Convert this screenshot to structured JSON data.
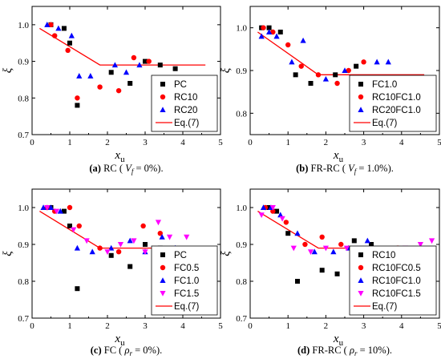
{
  "chart_data": [
    {
      "type": "scatter",
      "xlabel": "x",
      "xlabel_sub": "u",
      "ylabel": "ξ",
      "xlim": [
        0,
        5
      ],
      "ylim": [
        0.7,
        1.05
      ],
      "xticks": [
        "0",
        "1",
        "2",
        "3",
        "4",
        "5"
      ],
      "yticks": [
        "0.7",
        "0.8",
        "0.9",
        "1.0"
      ],
      "caption": {
        "tag": "(a)",
        "text": "RC (",
        "var": "V",
        "sub": "f",
        "tail": " = 0%)."
      },
      "legend_position": "bottom-right",
      "series": [
        {
          "name": "PC",
          "marker": "square",
          "color": "#000000",
          "points": [
            [
              0.5,
              1.0
            ],
            [
              0.85,
              0.99
            ],
            [
              1.0,
              0.95
            ],
            [
              1.2,
              0.78
            ],
            [
              2.1,
              0.87
            ],
            [
              2.6,
              0.84
            ],
            [
              3.0,
              0.9
            ],
            [
              3.4,
              0.89
            ],
            [
              3.8,
              0.88
            ]
          ]
        },
        {
          "name": "RC10",
          "marker": "circle",
          "color": "#ff0000",
          "points": [
            [
              0.5,
              1.0
            ],
            [
              0.6,
              0.97
            ],
            [
              0.95,
              0.93
            ],
            [
              1.2,
              0.8
            ],
            [
              1.8,
              0.83
            ],
            [
              2.3,
              0.82
            ],
            [
              2.7,
              0.91
            ],
            [
              3.1,
              0.9
            ],
            [
              3.55,
              0.83
            ],
            [
              3.95,
              0.8
            ]
          ]
        },
        {
          "name": "RC20",
          "marker": "triangle",
          "color": "#0000ff",
          "points": [
            [
              0.4,
              1.0
            ],
            [
              0.7,
              0.99
            ],
            [
              1.05,
              0.97
            ],
            [
              1.25,
              0.86
            ],
            [
              1.55,
              0.86
            ],
            [
              2.2,
              0.89
            ],
            [
              2.5,
              0.87
            ],
            [
              2.85,
              0.89
            ],
            [
              3.25,
              0.81
            ],
            [
              3.7,
              0.81
            ]
          ]
        }
      ],
      "line": {
        "name": "Eq.(7)",
        "color": "#ff0000",
        "points": [
          [
            0.2,
            0.99
          ],
          [
            1.8,
            0.89
          ],
          [
            4.6,
            0.89
          ]
        ]
      }
    },
    {
      "type": "scatter",
      "xlabel": "x",
      "xlabel_sub": "u",
      "ylabel": "ξ",
      "xlim": [
        0,
        5
      ],
      "ylim": [
        0.75,
        1.05
      ],
      "xticks": [
        "0",
        "1",
        "2",
        "3",
        "4",
        "5"
      ],
      "yticks": [
        "0.8",
        "0.9",
        "1.0"
      ],
      "caption": {
        "tag": "(b)",
        "text": "FR-RC (",
        "var": "V",
        "sub": "f",
        "tail": " = 1.0%)."
      },
      "legend_position": "bottom-right",
      "series": [
        {
          "name": "FC1.0",
          "marker": "square",
          "color": "#000000",
          "points": [
            [
              0.3,
              1.0
            ],
            [
              0.5,
              1.0
            ],
            [
              0.8,
              0.99
            ],
            [
              1.2,
              0.89
            ],
            [
              1.6,
              0.87
            ],
            [
              2.25,
              0.89
            ],
            [
              2.8,
              0.91
            ],
            [
              3.2,
              0.88
            ],
            [
              3.5,
              0.88
            ]
          ]
        },
        {
          "name": "RC10FC1.0",
          "marker": "circle",
          "color": "#ff0000",
          "points": [
            [
              0.35,
              1.0
            ],
            [
              0.6,
              0.99
            ],
            [
              1.0,
              0.96
            ],
            [
              1.35,
              0.91
            ],
            [
              1.8,
              0.89
            ],
            [
              2.3,
              0.87
            ],
            [
              2.6,
              0.9
            ],
            [
              3.0,
              0.92
            ],
            [
              3.4,
              0.88
            ],
            [
              3.8,
              0.87
            ]
          ]
        },
        {
          "name": "RC20FC1.0",
          "marker": "triangle",
          "color": "#0000ff",
          "points": [
            [
              0.3,
              0.98
            ],
            [
              0.5,
              0.99
            ],
            [
              0.7,
              0.98
            ],
            [
              1.1,
              0.92
            ],
            [
              1.4,
              0.97
            ],
            [
              2.0,
              0.88
            ],
            [
              2.5,
              0.9
            ],
            [
              3.0,
              0.81
            ],
            [
              3.35,
              0.92
            ],
            [
              3.65,
              0.92
            ]
          ]
        }
      ],
      "line": {
        "name": "Eq.(7)",
        "color": "#ff0000",
        "points": [
          [
            0.2,
            0.99
          ],
          [
            1.8,
            0.89
          ],
          [
            4.6,
            0.89
          ]
        ]
      }
    },
    {
      "type": "scatter",
      "xlabel": "x",
      "xlabel_sub": "u",
      "ylabel": "ξ",
      "xlim": [
        0,
        5
      ],
      "ylim": [
        0.7,
        1.05
      ],
      "xticks": [
        "0",
        "1",
        "2",
        "3",
        "4",
        "5"
      ],
      "yticks": [
        "0.7",
        "0.8",
        "0.9",
        "1.0"
      ],
      "caption": {
        "tag": "(c)",
        "text": "FC (",
        "var": "ρ",
        "sub": "r",
        "tail": " = 0%)."
      },
      "legend_position": "bottom-right",
      "series": [
        {
          "name": "PC",
          "marker": "square",
          "color": "#000000",
          "points": [
            [
              0.5,
              1.0
            ],
            [
              0.85,
              0.99
            ],
            [
              1.0,
              0.95
            ],
            [
              1.2,
              0.78
            ],
            [
              2.1,
              0.87
            ],
            [
              2.6,
              0.84
            ],
            [
              3.0,
              0.9
            ],
            [
              3.4,
              0.89
            ],
            [
              3.8,
              0.88
            ]
          ]
        },
        {
          "name": "FC0.5",
          "marker": "circle",
          "color": "#ff0000",
          "points": [
            [
              0.4,
              1.0
            ],
            [
              0.6,
              0.99
            ],
            [
              1.0,
              1.0
            ],
            [
              1.25,
              0.95
            ],
            [
              1.8,
              0.89
            ],
            [
              2.3,
              0.88
            ],
            [
              2.95,
              0.95
            ],
            [
              3.4,
              0.93
            ],
            [
              3.85,
              0.88
            ]
          ]
        },
        {
          "name": "FC1.0",
          "marker": "triangle",
          "color": "#0000ff",
          "points": [
            [
              0.3,
              1.0
            ],
            [
              0.5,
              1.0
            ],
            [
              0.75,
              0.99
            ],
            [
              1.2,
              0.89
            ],
            [
              1.6,
              0.88
            ],
            [
              2.1,
              0.89
            ],
            [
              2.6,
              0.91
            ],
            [
              3.0,
              0.88
            ],
            [
              3.45,
              0.92
            ],
            [
              3.8,
              0.89
            ]
          ]
        },
        {
          "name": "FC1.5",
          "marker": "tri-down",
          "color": "#ff00ff",
          "points": [
            [
              0.4,
              1.0
            ],
            [
              0.65,
              0.99
            ],
            [
              1.1,
              0.94
            ],
            [
              1.45,
              0.91
            ],
            [
              2.0,
              0.88
            ],
            [
              2.35,
              0.9
            ],
            [
              2.7,
              0.91
            ],
            [
              3.0,
              0.88
            ],
            [
              3.35,
              0.96
            ],
            [
              3.65,
              0.92
            ],
            [
              4.1,
              0.92
            ]
          ]
        }
      ],
      "line": {
        "name": "Eq.(7)",
        "color": "#ff0000",
        "points": [
          [
            0.2,
            0.99
          ],
          [
            1.8,
            0.89
          ],
          [
            4.6,
            0.89
          ]
        ]
      }
    },
    {
      "type": "scatter",
      "xlabel": "x",
      "xlabel_sub": "u",
      "ylabel": "ξ",
      "xlim": [
        0,
        5
      ],
      "ylim": [
        0.7,
        1.05
      ],
      "xticks": [
        "0",
        "1",
        "2",
        "3",
        "4",
        "5"
      ],
      "yticks": [
        "0.7",
        "0.8",
        "0.9",
        "1.0"
      ],
      "caption": {
        "tag": "(d)",
        "text": "FR-RC (",
        "var": "ρ",
        "sub": "r",
        "tail": " = 10%)."
      },
      "legend_position": "bottom-right",
      "series": [
        {
          "name": "RC10",
          "marker": "square",
          "color": "#000000",
          "points": [
            [
              0.5,
              1.0
            ],
            [
              0.7,
              0.99
            ],
            [
              1.0,
              0.93
            ],
            [
              1.25,
              0.8
            ],
            [
              1.9,
              0.83
            ],
            [
              2.3,
              0.82
            ],
            [
              2.75,
              0.91
            ],
            [
              3.2,
              0.9
            ],
            [
              3.4,
              0.83
            ],
            [
              3.8,
              0.87
            ]
          ]
        },
        {
          "name": "RC10FC0.5",
          "marker": "circle",
          "color": "#ff0000",
          "points": [
            [
              0.4,
              1.0
            ],
            [
              0.6,
              0.99
            ],
            [
              0.95,
              0.96
            ],
            [
              1.45,
              0.9
            ],
            [
              1.9,
              0.92
            ],
            [
              2.4,
              0.9
            ],
            [
              2.95,
              0.84
            ],
            [
              3.4,
              0.88
            ],
            [
              3.9,
              0.89
            ]
          ]
        },
        {
          "name": "RC10FC1.0",
          "marker": "triangle",
          "color": "#0000ff",
          "points": [
            [
              0.35,
              1.0
            ],
            [
              0.55,
              1.0
            ],
            [
              0.8,
              0.98
            ],
            [
              1.25,
              0.93
            ],
            [
              1.7,
              0.88
            ],
            [
              2.2,
              0.88
            ],
            [
              2.6,
              0.89
            ],
            [
              3.1,
              0.91
            ],
            [
              3.5,
              0.88
            ],
            [
              3.9,
              0.87
            ]
          ]
        },
        {
          "name": "RC10FC1.5",
          "marker": "tri-down",
          "color": "#ff00ff",
          "points": [
            [
              0.3,
              0.98
            ],
            [
              0.6,
              1.0
            ],
            [
              0.85,
              0.97
            ],
            [
              1.15,
              0.89
            ],
            [
              1.6,
              0.88
            ],
            [
              2.0,
              0.89
            ],
            [
              2.55,
              0.89
            ],
            [
              2.95,
              0.86
            ],
            [
              3.3,
              0.87
            ],
            [
              3.6,
              0.88
            ],
            [
              4.1,
              0.89
            ],
            [
              4.5,
              0.9
            ],
            [
              4.8,
              0.91
            ]
          ]
        }
      ],
      "line": {
        "name": "Eq.(7)",
        "color": "#ff0000",
        "points": [
          [
            0.2,
            0.99
          ],
          [
            1.8,
            0.89
          ],
          [
            4.6,
            0.89
          ]
        ]
      }
    }
  ]
}
